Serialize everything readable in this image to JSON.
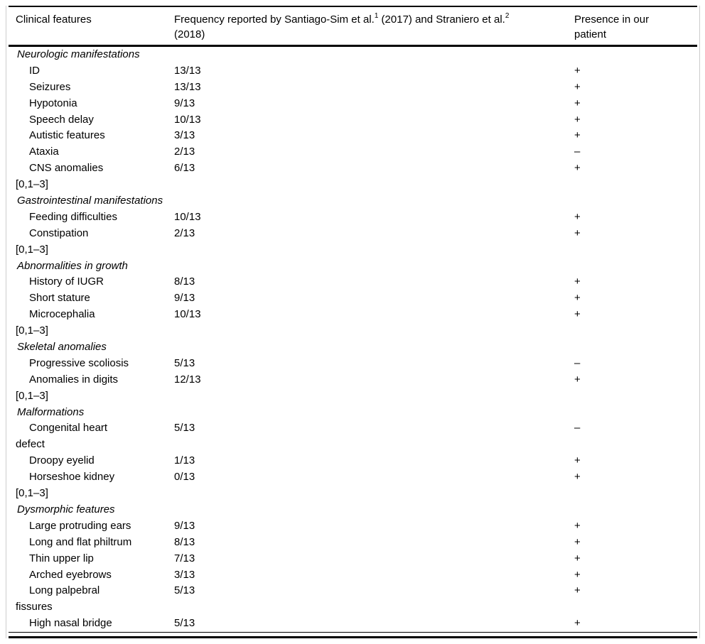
{
  "page": {
    "background": "#ffffff",
    "text_color": "#000000",
    "rule_color": "#000000",
    "side_border_color": "#cccccc"
  },
  "table": {
    "header": {
      "col1": "Clinical features",
      "col2": {
        "part1": "Frequency reported by Santiago-Sim et al.",
        "sup1": "1",
        "part2": " (2017) and Straniero et al.",
        "sup2": "2",
        "part3": "(2018)"
      },
      "col3_line1": "Presence in our",
      "col3_line2": "patient"
    },
    "rows": [
      {
        "type": "section",
        "label": "Neurologic manifestations"
      },
      {
        "type": "item",
        "label": "ID",
        "frequency": "13/13",
        "presence": "+"
      },
      {
        "type": "item",
        "label": "Seizures",
        "frequency": "13/13",
        "presence": "+"
      },
      {
        "type": "item",
        "label": "Hypotonia",
        "frequency": "9/13",
        "presence": "+"
      },
      {
        "type": "item",
        "label": "Speech delay",
        "frequency": "10/13",
        "presence": "+"
      },
      {
        "type": "item",
        "label": "Autistic features",
        "frequency": "3/13",
        "presence": "+"
      },
      {
        "type": "item",
        "label": "Ataxia",
        "frequency": "2/13",
        "presence": "–"
      },
      {
        "type": "item",
        "label": "CNS anomalies",
        "frequency": "6/13",
        "presence": "+"
      },
      {
        "type": "cont",
        "label": "[0,1–3]"
      },
      {
        "type": "section",
        "label": "Gastrointestinal manifestations"
      },
      {
        "type": "item",
        "label": "Feeding difficulties",
        "frequency": "10/13",
        "presence": "+"
      },
      {
        "type": "item",
        "label": "Constipation",
        "frequency": "2/13",
        "presence": "+"
      },
      {
        "type": "cont",
        "label": "[0,1–3]"
      },
      {
        "type": "section",
        "label": "Abnormalities in growth"
      },
      {
        "type": "item",
        "label": "History of IUGR",
        "frequency": "8/13",
        "presence": "+"
      },
      {
        "type": "item",
        "label": "Short stature",
        "frequency": "9/13",
        "presence": "+"
      },
      {
        "type": "item",
        "label": "Microcephalia",
        "frequency": "10/13",
        "presence": "+"
      },
      {
        "type": "cont",
        "label": "[0,1–3]"
      },
      {
        "type": "section",
        "label": "Skeletal anomalies"
      },
      {
        "type": "item",
        "label": "Progressive scoliosis",
        "frequency": "5/13",
        "presence": "–"
      },
      {
        "type": "item",
        "label": "Anomalies in digits",
        "frequency": "12/13",
        "presence": "+"
      },
      {
        "type": "cont",
        "label": "[0,1–3]"
      },
      {
        "type": "section",
        "label": "Malformations"
      },
      {
        "type": "item",
        "label": "Congenital heart",
        "frequency": "5/13",
        "presence": "–"
      },
      {
        "type": "cont",
        "label": "defect"
      },
      {
        "type": "item",
        "label": "Droopy eyelid",
        "frequency": "1/13",
        "presence": "+"
      },
      {
        "type": "item",
        "label": "Horseshoe kidney",
        "frequency": "0/13",
        "presence": "+"
      },
      {
        "type": "cont",
        "label": "[0,1–3]"
      },
      {
        "type": "section",
        "label": "Dysmorphic features"
      },
      {
        "type": "item",
        "label": "Large protruding ears",
        "frequency": "9/13",
        "presence": "+"
      },
      {
        "type": "item",
        "label": "Long and flat philtrum",
        "frequency": "8/13",
        "presence": "+"
      },
      {
        "type": "item",
        "label": "Thin upper lip",
        "frequency": "7/13",
        "presence": "+"
      },
      {
        "type": "item",
        "label": "Arched eyebrows",
        "frequency": "3/13",
        "presence": "+"
      },
      {
        "type": "item",
        "label": "Long palpebral",
        "frequency": "5/13",
        "presence": "+"
      },
      {
        "type": "cont",
        "label": "fissures"
      },
      {
        "type": "item",
        "label": "High nasal bridge",
        "frequency": "5/13",
        "presence": "+"
      }
    ]
  }
}
